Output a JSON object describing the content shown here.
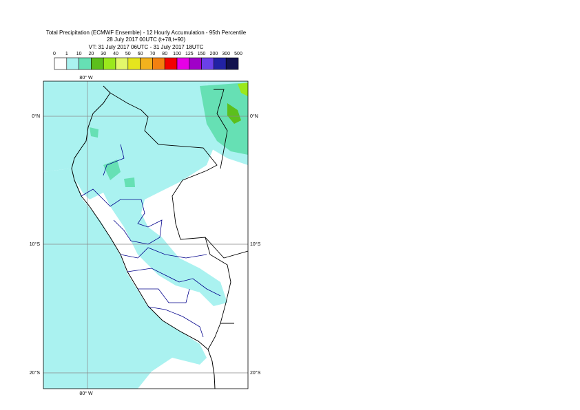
{
  "header": {
    "title_lines": [
      "Total Precipitation (ECMWF Ensemble) - 12 Hourly Accumulation - 95th Percentile",
      "28 July 2017 00UTC (t+78,t+90)",
      "VT: 31 July 2017 06UTC - 31 July 2017 18UTC"
    ]
  },
  "legend": {
    "levels": [
      "0",
      "1",
      "10",
      "20",
      "30",
      "40",
      "50",
      "60",
      "70",
      "80",
      "100",
      "125",
      "150",
      "200",
      "300",
      "500"
    ],
    "colors": [
      "#ffffff",
      "#aaf2f0",
      "#66e0b4",
      "#5cbf1c",
      "#9be81c",
      "#e3f76a",
      "#e5e51e",
      "#f2b21e",
      "#f28010",
      "#f20000",
      "#e600e6",
      "#a000c8",
      "#6a40e8",
      "#2222a4",
      "#12124e"
    ]
  },
  "map": {
    "lon_labels": [
      "80° W",
      "80° W"
    ],
    "lat_labels": [
      "0°N",
      "10°S",
      "20°S"
    ]
  }
}
